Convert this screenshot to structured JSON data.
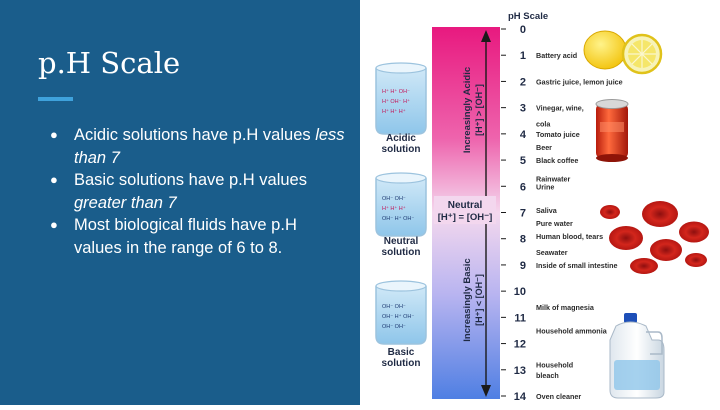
{
  "slide": {
    "title": "p.H Scale",
    "bullets": [
      {
        "text": "Acidic solutions have p.H values ",
        "emph": "less than 7"
      },
      {
        "text": "Basic solutions have p.H values ",
        "emph": "greater than 7"
      },
      {
        "text": "Most biological fluids have p.H values in the range of 6 to 8.",
        "emph": ""
      }
    ]
  },
  "figure": {
    "scale_title": "pH Scale",
    "ph_values": [
      "0",
      "1",
      "2",
      "3",
      "4",
      "5",
      "6",
      "7",
      "8",
      "9",
      "10",
      "11",
      "12",
      "13",
      "14"
    ],
    "examples": [
      {
        "ph": 1,
        "label": "Battery acid"
      },
      {
        "ph": 2,
        "label": "Gastric juice, lemon juice"
      },
      {
        "ph": 3,
        "label": "Vinegar, wine,"
      },
      {
        "ph": 3.6,
        "label": "cola"
      },
      {
        "ph": 4,
        "label": "Tomato juice"
      },
      {
        "ph": 4.5,
        "label": "Beer"
      },
      {
        "ph": 5,
        "label": "Black coffee"
      },
      {
        "ph": 5.7,
        "label": "Rainwater"
      },
      {
        "ph": 6,
        "label": "Urine"
      },
      {
        "ph": 6.9,
        "label": "Saliva"
      },
      {
        "ph": 7.4,
        "label": "Pure water"
      },
      {
        "ph": 7.9,
        "label": "Human blood, tears"
      },
      {
        "ph": 8.5,
        "label": "Seawater"
      },
      {
        "ph": 9,
        "label": "Inside of small intestine"
      },
      {
        "ph": 10.6,
        "label": "Milk of magnesia"
      },
      {
        "ph": 11.5,
        "label": "Household ammonia"
      },
      {
        "ph": 12.8,
        "label": "Household"
      },
      {
        "ph": 13.2,
        "label": "bleach"
      },
      {
        "ph": 14,
        "label": "Oven cleaner"
      }
    ],
    "acidic_label": "Increasingly Acidic",
    "acidic_relation": "[H⁺] > [OH⁻]",
    "basic_label": "Increasingly Basic",
    "basic_relation": "[H⁺] < [OH⁻]",
    "neutral_label": "Neutral",
    "neutral_relation": "[H⁺] = [OH⁻]",
    "beaker_labels": {
      "acidic": [
        "Acidic",
        "solution"
      ],
      "neutral": [
        "Neutral",
        "solution"
      ],
      "basic": [
        "Basic",
        "solution"
      ]
    },
    "colors": {
      "acid": "#e8197f",
      "neutral": "#f3d7ee",
      "base": "#4f7fe3",
      "slide_bg": "#1a5d8b",
      "accent": "#3fa2dc"
    }
  }
}
